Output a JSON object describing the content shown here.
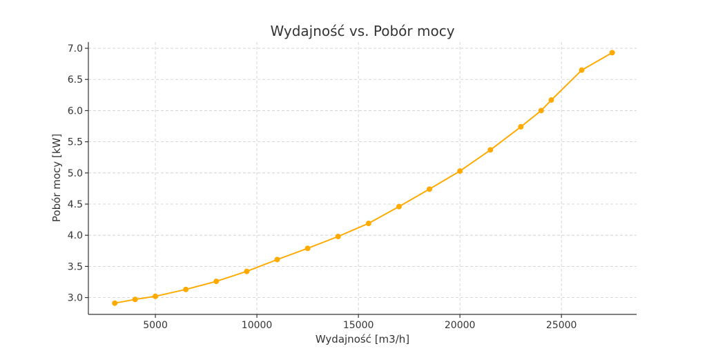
{
  "chart_data": {
    "type": "line",
    "title": "Wydajność vs. Pobór mocy",
    "xlabel": "Wydajność [m3/h]",
    "ylabel": "Pobór mocy [kW]",
    "xlim": [
      1700,
      28700
    ],
    "ylim": [
      2.73,
      7.1
    ],
    "xticks": [
      5000,
      10000,
      15000,
      20000,
      25000
    ],
    "yticks": [
      3.0,
      3.5,
      4.0,
      4.5,
      5.0,
      5.5,
      6.0,
      6.5,
      7.0
    ],
    "grid": true,
    "color": "#FFAA00",
    "series": [
      {
        "x": [
          3000,
          4000,
          5000,
          6500,
          8000,
          9500,
          11000,
          12500,
          14000,
          15500,
          17000,
          18500,
          20000,
          21500,
          23000,
          24000,
          24500,
          26000,
          27500
        ],
        "y": [
          2.91,
          2.97,
          3.02,
          3.13,
          3.26,
          3.42,
          3.61,
          3.79,
          3.98,
          4.19,
          4.46,
          4.74,
          5.03,
          5.37,
          5.74,
          6.0,
          6.17,
          6.65,
          6.93
        ]
      }
    ]
  }
}
